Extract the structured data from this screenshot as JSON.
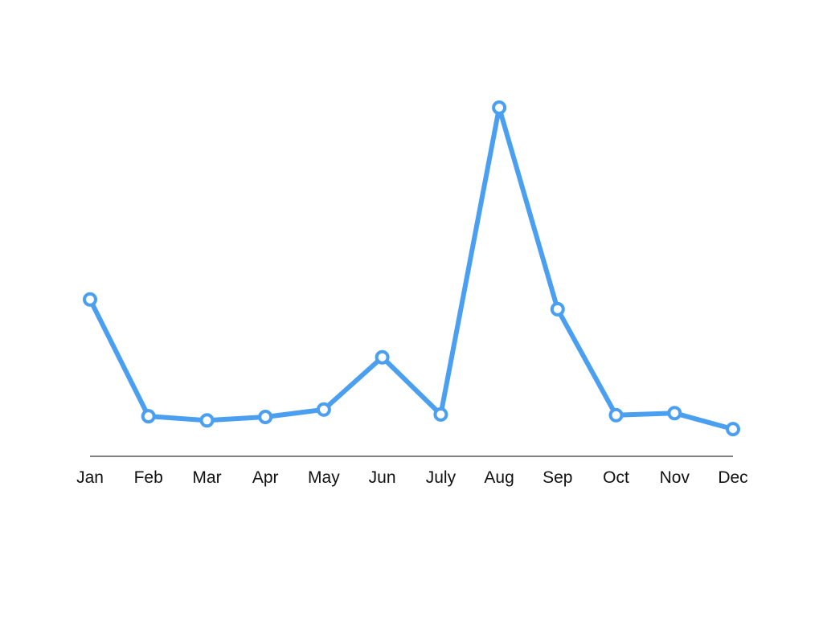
{
  "colors": {
    "series": "#4a9ff0",
    "axis": "#000000",
    "label": "#111111",
    "marker_fill": "#ffffff"
  },
  "chart_data": {
    "type": "line",
    "title": "",
    "xlabel": "",
    "ylabel": "",
    "categories": [
      "Jan",
      "Feb",
      "Mar",
      "Apr",
      "May",
      "Jun",
      "July",
      "Aug",
      "Sep",
      "Oct",
      "Nov",
      "Dec"
    ],
    "series": [
      {
        "values": [
          45,
          11.5,
          10.3,
          11.3,
          13.4,
          28.4,
          12.0,
          100,
          42.2,
          11.8,
          12.4,
          7.8
        ]
      }
    ],
    "ylim": [
      0,
      100
    ],
    "y_axis_shown": false,
    "grid": false,
    "legend": "none",
    "markers": "hollow-circle"
  }
}
